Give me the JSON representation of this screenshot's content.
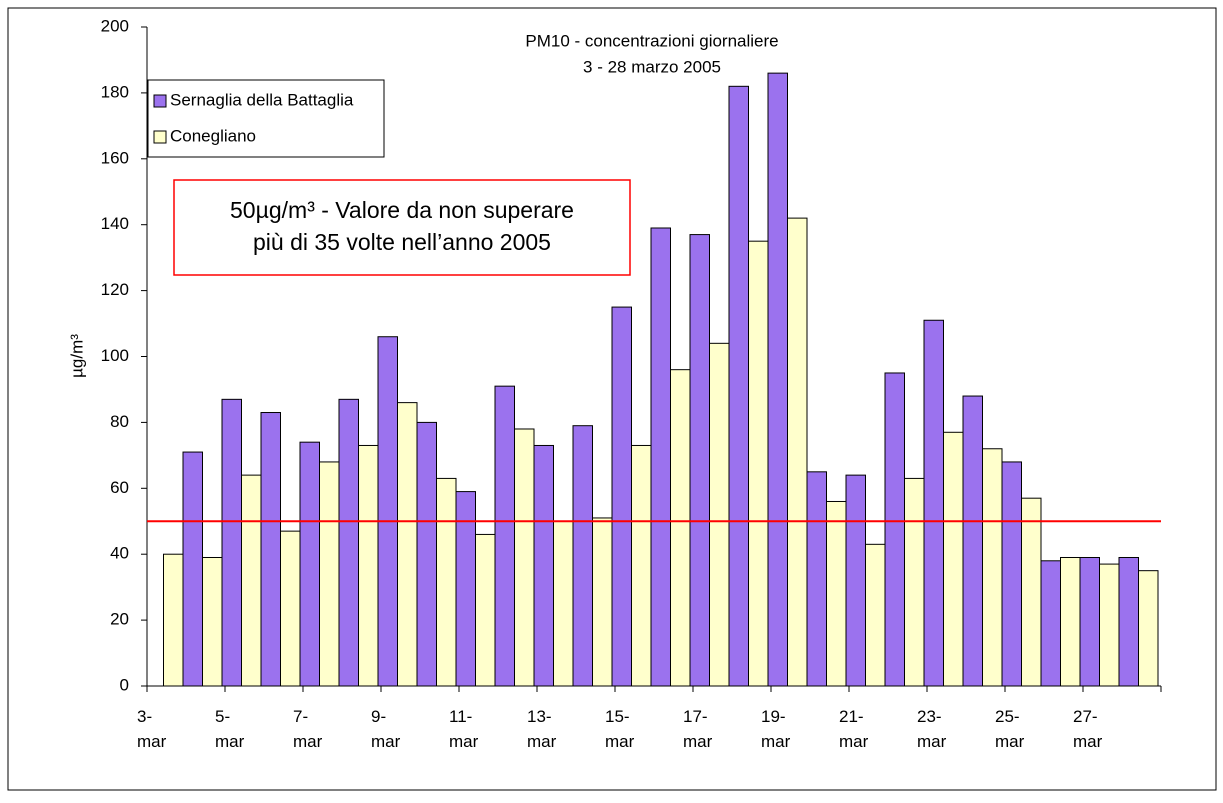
{
  "chart_data": {
    "type": "bar",
    "title": "PM10 - concentrazioni giornaliere",
    "subtitle": "3 - 28 marzo 2005",
    "ylabel": "µg/m³",
    "annotation": [
      "50µg/m³ - Valore da non superare",
      "più di 35 volte nell’anno 2005"
    ],
    "categories": [
      "3-mar",
      null,
      "5-mar",
      null,
      "7-mar",
      null,
      "9-mar",
      null,
      "11-mar",
      null,
      "13-mar",
      null,
      "15-mar",
      null,
      "17-mar",
      null,
      "19-mar",
      null,
      "21-mar",
      null,
      "23-mar",
      null,
      "25-mar",
      null,
      "27-mar",
      null
    ],
    "series": [
      {
        "name": "Sernaglia della Battaglia",
        "color": "#9b72ee",
        "values": [
          null,
          71,
          87,
          83,
          74,
          87,
          106,
          80,
          59,
          91,
          73,
          79,
          115,
          139,
          137,
          182,
          186,
          65,
          64,
          95,
          111,
          88,
          68,
          38,
          39,
          39
        ]
      },
      {
        "name": "Conegliano",
        "color": "#ffffcc",
        "values": [
          40,
          39,
          64,
          47,
          68,
          73,
          86,
          63,
          46,
          78,
          50,
          51,
          73,
          96,
          104,
          135,
          142,
          56,
          43,
          63,
          77,
          72,
          57,
          39,
          37,
          35
        ]
      }
    ],
    "reference_line": {
      "value": 50,
      "color": "#ff0000"
    },
    "ylim": [
      0,
      200
    ],
    "yticks": [
      0,
      20,
      40,
      60,
      80,
      100,
      120,
      140,
      160,
      180,
      200
    ],
    "legend": "top-left"
  }
}
